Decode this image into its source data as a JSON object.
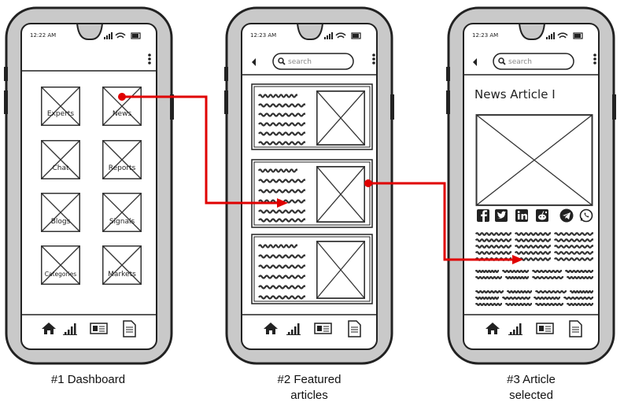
{
  "phones": [
    {
      "time": "12:22 AM",
      "caption_lines": [
        "#1 Dashboard"
      ],
      "tiles": [
        "Experts",
        "News",
        "Chat",
        "Reports",
        "Blogs",
        "Signals",
        "Categories",
        "Markets"
      ]
    },
    {
      "time": "12:23 AM",
      "caption_lines": [
        "#2 Featured",
        "articles"
      ],
      "search_placeholder": "search"
    },
    {
      "time": "12:23 AM",
      "caption_lines": [
        "#3 Article",
        "selected"
      ],
      "search_placeholder": "search",
      "article_title": "News Article I"
    }
  ],
  "nav_icons": [
    "home-icon",
    "signal-bars-icon",
    "id-card-icon",
    "document-icon"
  ],
  "share_icons": [
    "facebook-icon",
    "twitter-icon",
    "linkedin-icon",
    "reddit-icon",
    "telegram-icon",
    "whatsapp-icon"
  ],
  "colors": {
    "frame": "#222222",
    "frame_fill": "#c9c9c9",
    "screen": "#ffffff",
    "arrow": "#e00000"
  }
}
